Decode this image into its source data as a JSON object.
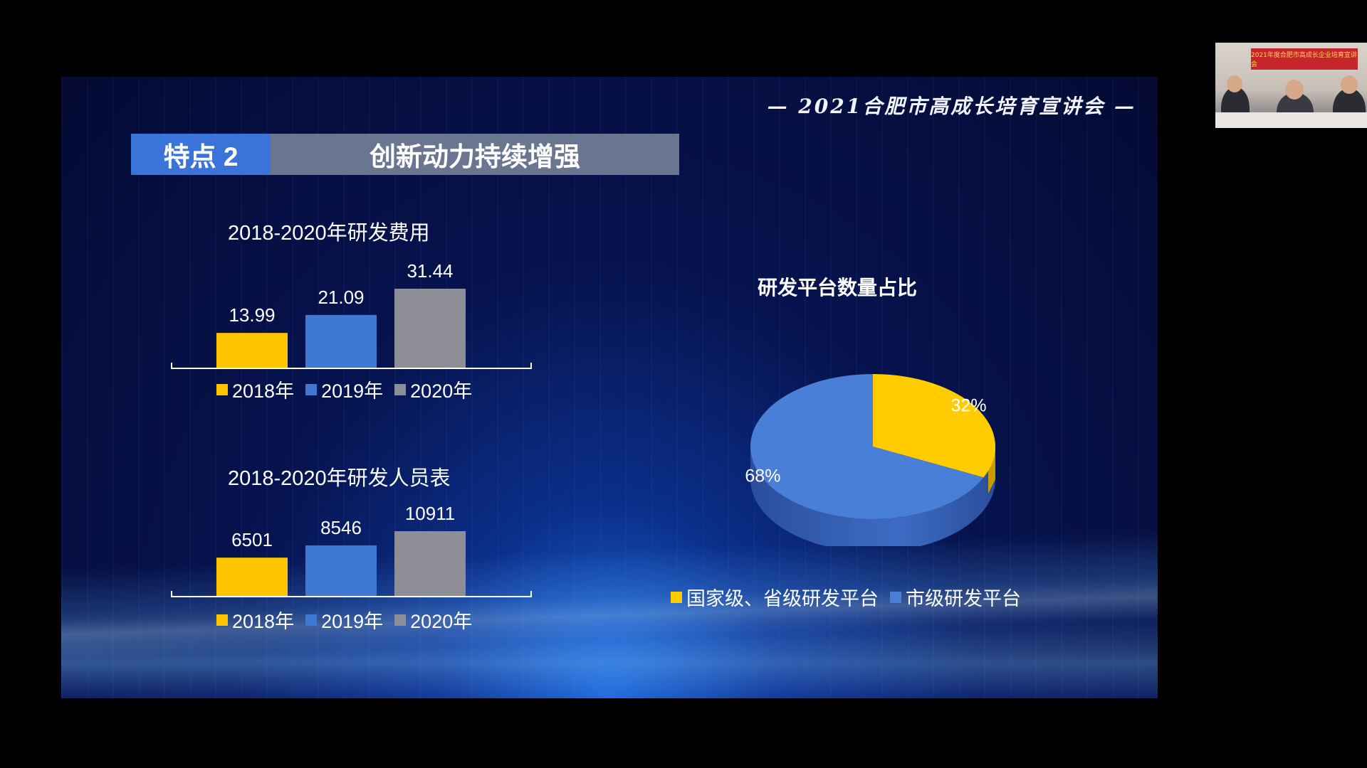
{
  "header": {
    "event_title": "— 2021合肥市高成长培育宣讲会 —"
  },
  "title_bar": {
    "tag": "特点 2",
    "title": "创新动力持续增强"
  },
  "chart_data": [
    {
      "type": "bar",
      "title": "2018-2020年研发费用",
      "categories": [
        "2018年",
        "2019年",
        "2020年"
      ],
      "values": [
        13.99,
        21.09,
        31.44
      ],
      "value_labels": [
        "13.99",
        "21.09",
        "31.44"
      ],
      "colors": [
        "#ffc400",
        "#3f78d4",
        "#8e8e96"
      ],
      "legend": [
        "2018年",
        "2019年",
        "2020年"
      ],
      "legend_position": "bottom"
    },
    {
      "type": "bar",
      "title": "2018-2020年研发人员表",
      "categories": [
        "2018年",
        "2019年",
        "2020年"
      ],
      "values": [
        6501,
        8546,
        10911
      ],
      "value_labels": [
        "6501",
        "8546",
        "10911"
      ],
      "colors": [
        "#ffc400",
        "#3f78d4",
        "#8e8e96"
      ],
      "legend": [
        "2018年",
        "2019年",
        "2020年"
      ],
      "legend_position": "bottom"
    },
    {
      "type": "pie",
      "title": "研发平台数量占比",
      "categories": [
        "国家级、省级研发平台",
        "市级研发平台"
      ],
      "values": [
        32,
        68
      ],
      "value_labels": [
        "32%",
        "68%"
      ],
      "colors": [
        "#ffcc00",
        "#4a7fd8"
      ],
      "legend": [
        "国家级、省级研发平台",
        "市级研发平台"
      ],
      "legend_position": "bottom"
    }
  ],
  "webcam": {
    "banner": "2021年度合肥市高成长企业培育宣讲会"
  }
}
